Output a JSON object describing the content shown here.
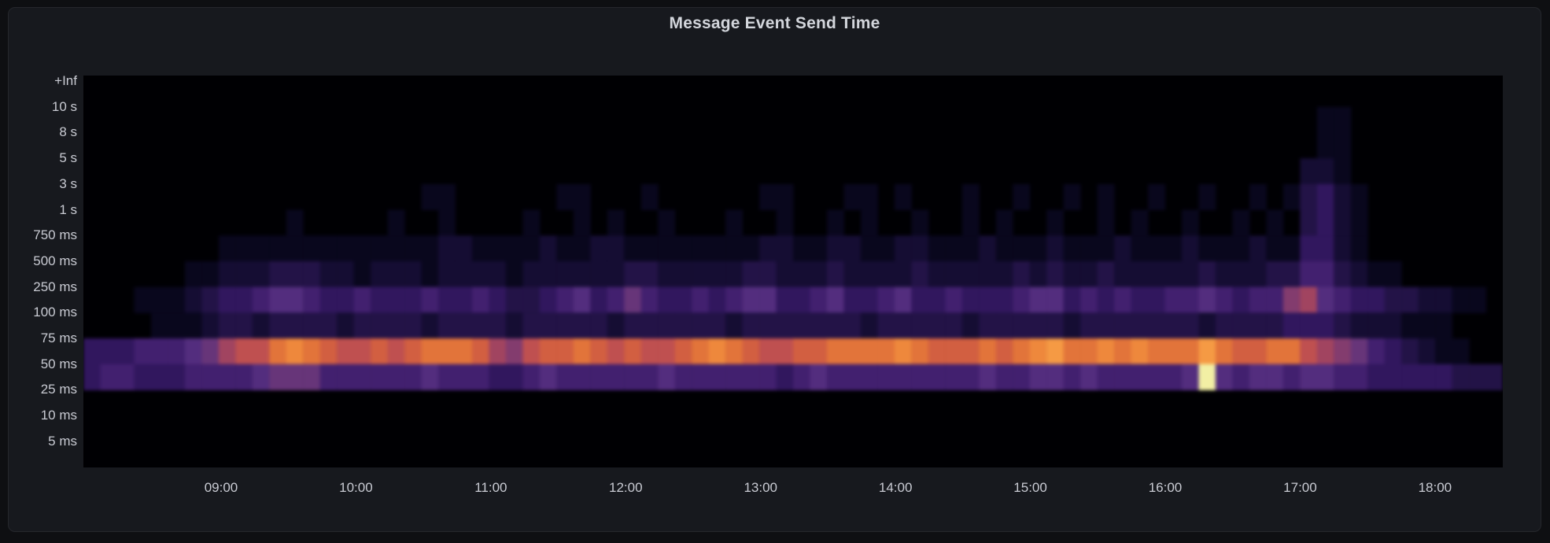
{
  "panel": {
    "title": "Message Event Send Time"
  },
  "y_axis": {
    "labels": [
      "+Inf",
      "10 s",
      "8 s",
      "5 s",
      "3 s",
      "1 s",
      "750 ms",
      "500 ms",
      "250 ms",
      "100 ms",
      "75 ms",
      "50 ms",
      "25 ms",
      "10 ms",
      "5 ms"
    ]
  },
  "x_axis": {
    "labels": [
      "09:00",
      "10:00",
      "11:00",
      "12:00",
      "13:00",
      "14:00",
      "15:00",
      "16:00",
      "17:00",
      "18:00"
    ]
  },
  "colors": {
    "page_background": "#0e0f12",
    "panel_background": "#17191e",
    "panel_border": "#25272c",
    "plot_background": "#000003",
    "title_text": "#d3d6dc",
    "axis_text": "#c9cbd3"
  },
  "chart_data": {
    "type": "heatmap",
    "title": "Message Event Send Time",
    "x_start": "08:00",
    "x_end": "18:30",
    "x_bucket_minutes": 7.5,
    "columns": 84,
    "x_tick_labels": [
      "09:00",
      "10:00",
      "11:00",
      "12:00",
      "13:00",
      "14:00",
      "15:00",
      "16:00",
      "17:00",
      "18:00"
    ],
    "y_labels_top_to_bottom": [
      "+Inf",
      "10 s",
      "8 s",
      "5 s",
      "3 s",
      "1 s",
      "750 ms",
      "500 ms",
      "250 ms",
      "100 ms",
      "75 ms",
      "50 ms",
      "25 ms",
      "10 ms",
      "5 ms"
    ],
    "y_labels_are_bucket_upper_bounds": true,
    "intensity_encoding": "one hex digit per 7.5-minute column, 0=empty .. f=max density",
    "rows": [
      {
        "bucket_upper": "+Inf",
        "cells": "000000000000000000000000000000000000000000000000000000000000000000000000000000000000"
      },
      {
        "bucket_upper": "10 s",
        "cells": "000000000000000000000000000000000000000000000000000000000000000000000000011000000000"
      },
      {
        "bucket_upper": "8 s",
        "cells": "000000000000000000000000000000000000000000000000000000000000000000000000011000000000"
      },
      {
        "bucket_upper": "5 s",
        "cells": "000000000000000000000000000000000000000000000000000000000000000000000000221000000000"
      },
      {
        "bucket_upper": "3 s",
        "cells": "000000000000000000001100000011000100000011000110100010010010100100100101342100000000"
      },
      {
        "bucket_upper": "1 s",
        "cells": "000000000000100000100100001001010010001001001010010010100100101001001010342100000000"
      },
      {
        "bucket_upper": "750 ms",
        "cells": "000000001111111111111221111211221111111122112211221112111211121112111211442100000000"
      },
      {
        "bucket_upper": "500 ms",
        "cells": "000000112223332212221222212222223322222332223222232222232322322222322233553211000000"
      },
      {
        "bucket_upper": "250 ms",
        "cells": "000111234456654454445445433456457544545664456445644544456645454455654558965443322110"
      },
      {
        "bucket_upper": "100 ms",
        "cells": "000011123323333233332333323333323333332333333323333323333323333333233334443222111000"
      },
      {
        "bucket_upper": "75 ms",
        "cells": "444555679aacdcbaababcccb98abbcbabaabcdcbaabbccccdcbbbcbcdeccdcdcccecbbcca98754321100"
      },
      {
        "bucket_upper": "50 ms",
        "cells": "455444555567775555556555445655555565555554565555555556556656555556f65665665544444333"
      },
      {
        "bucket_upper": "25 ms",
        "cells": "000000000000000000000000000000000000000000000000000000000000000000000000000000000000"
      },
      {
        "bucket_upper": "10 ms",
        "cells": "000000000000000000000000000000000000000000000000000000000000000000000000000000000000"
      },
      {
        "bucket_upper": "5 ms",
        "cells": "000000000000000000000000000000000000000000000000000000000000000000000000000000000000"
      }
    ],
    "palette_16": [
      "#000004",
      "#09071d",
      "#150d33",
      "#231347",
      "#31175e",
      "#42206f",
      "#532d7e",
      "#673579",
      "#833c6e",
      "#a14460",
      "#bf5050",
      "#d25f41",
      "#e2743a",
      "#ee883c",
      "#f59a44",
      "#f2efa4"
    ],
    "colormap_name": "magma-like (black-violet-rose-orange-yellow)",
    "legend": "none visible",
    "grid": "off"
  }
}
